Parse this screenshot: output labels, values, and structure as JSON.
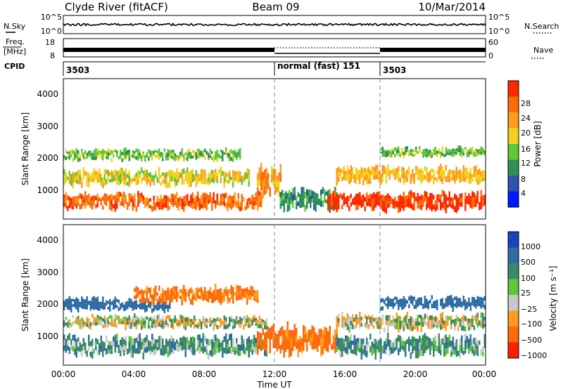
{
  "header": {
    "station": "Clyde River (fitACF)",
    "beam": "Beam 09",
    "date": "10/Mar/2014"
  },
  "nsky_panel": {
    "left_label": "N.Sky",
    "right_label": "N.Search",
    "tick_top": "10^5",
    "tick_bottom": "10^0",
    "tick_top_right": "10^5",
    "tick_bottom_right": "10^0"
  },
  "freq_panel": {
    "left_label_1": "Freq.",
    "left_label_2": "[MHz]",
    "right_label": "Nave",
    "left_ticks": [
      "18",
      "8"
    ],
    "right_ticks": [
      "60",
      "0"
    ]
  },
  "cpid_panel": {
    "label": "CPID",
    "segments": [
      {
        "start_hour": 0,
        "text": "3503"
      },
      {
        "start_hour": 12,
        "text": "normal (fast) 151"
      },
      {
        "start_hour": 18,
        "text": "3503"
      }
    ]
  },
  "colors": {
    "power_scale": [
      "#0018ff",
      "#2d55b0",
      "#2f8f5a",
      "#5cc83a",
      "#f0d21e",
      "#ff9b1e",
      "#ff6a0a",
      "#ff2800"
    ],
    "velocity_scale": [
      "#1a45b8",
      "#2d6ca5",
      "#3a8a6a",
      "#5cc83a",
      "#c8c8c8",
      "#ff9b1e",
      "#ff6a0a",
      "#ff2000"
    ]
  },
  "chart_data": [
    {
      "type": "heatmap",
      "title": "",
      "xlabel": "",
      "ylabel": "Slant Range [km]",
      "xlim": [
        0,
        24
      ],
      "ylim": [
        200,
        4600
      ],
      "y_ticks": [
        "1000",
        "2000",
        "3000",
        "4000"
      ],
      "colorbar_label": "Power [dB]",
      "colorbar_ticks": [
        "4",
        "8",
        "12",
        "16",
        "20",
        "24",
        "28"
      ],
      "colorbar_range": [
        0,
        32
      ],
      "cpid_markers_hours": [
        12,
        18
      ],
      "bands": [
        {
          "start": 0.0,
          "end": 11.2,
          "center_km": 750,
          "width_km": 500,
          "value": 26
        },
        {
          "start": 0.0,
          "end": 10.5,
          "center_km": 1500,
          "width_km": 500,
          "value": 18
        },
        {
          "start": 0.0,
          "end": 10.0,
          "center_km": 2200,
          "width_km": 350,
          "value": 14
        },
        {
          "start": 11.0,
          "end": 12.3,
          "center_km": 1400,
          "width_km": 800,
          "value": 22
        },
        {
          "start": 12.3,
          "end": 15.5,
          "center_km": 800,
          "width_km": 600,
          "value": 10
        },
        {
          "start": 15.0,
          "end": 24.0,
          "center_km": 750,
          "width_km": 550,
          "value": 30
        },
        {
          "start": 15.5,
          "end": 24.0,
          "center_km": 1600,
          "width_km": 500,
          "value": 20
        },
        {
          "start": 18.0,
          "end": 24.0,
          "center_km": 2300,
          "width_km": 300,
          "value": 14
        }
      ]
    },
    {
      "type": "heatmap",
      "title": "",
      "xlabel": "Time UT",
      "ylabel": "Slant Range [km]",
      "xlim": [
        0,
        24
      ],
      "ylim": [
        200,
        4600
      ],
      "x_ticks": [
        "00:00",
        "04:00",
        "08:00",
        "12:00",
        "16:00",
        "20:00",
        "00:00"
      ],
      "y_ticks": [
        "1000",
        "2000",
        "3000",
        "4000"
      ],
      "colorbar_label": "Velocity [m s⁻¹]",
      "colorbar_ticks": [
        "1000",
        "500",
        "100",
        "25",
        "−25",
        "−100",
        "−500",
        "−1000"
      ],
      "cpid_markers_hours": [
        12,
        18
      ],
      "bands": [
        {
          "start": 0.0,
          "end": 11.5,
          "center_km": 800,
          "width_km": 600,
          "value": 60
        },
        {
          "start": 0.0,
          "end": 11.5,
          "center_km": 1550,
          "width_km": 400,
          "value": 0
        },
        {
          "start": 0.0,
          "end": 6.0,
          "center_km": 2100,
          "width_km": 400,
          "value": 300
        },
        {
          "start": 4.0,
          "end": 11.0,
          "center_km": 2400,
          "width_km": 500,
          "value": -120
        },
        {
          "start": 11.0,
          "end": 15.5,
          "center_km": 1000,
          "width_km": 800,
          "value": -150
        },
        {
          "start": 15.5,
          "end": 24.0,
          "center_km": 800,
          "width_km": 600,
          "value": 60
        },
        {
          "start": 15.5,
          "end": 24.0,
          "center_km": 1550,
          "width_km": 500,
          "value": 0
        },
        {
          "start": 18.0,
          "end": 24.0,
          "center_km": 2150,
          "width_km": 400,
          "value": 300
        }
      ]
    }
  ]
}
